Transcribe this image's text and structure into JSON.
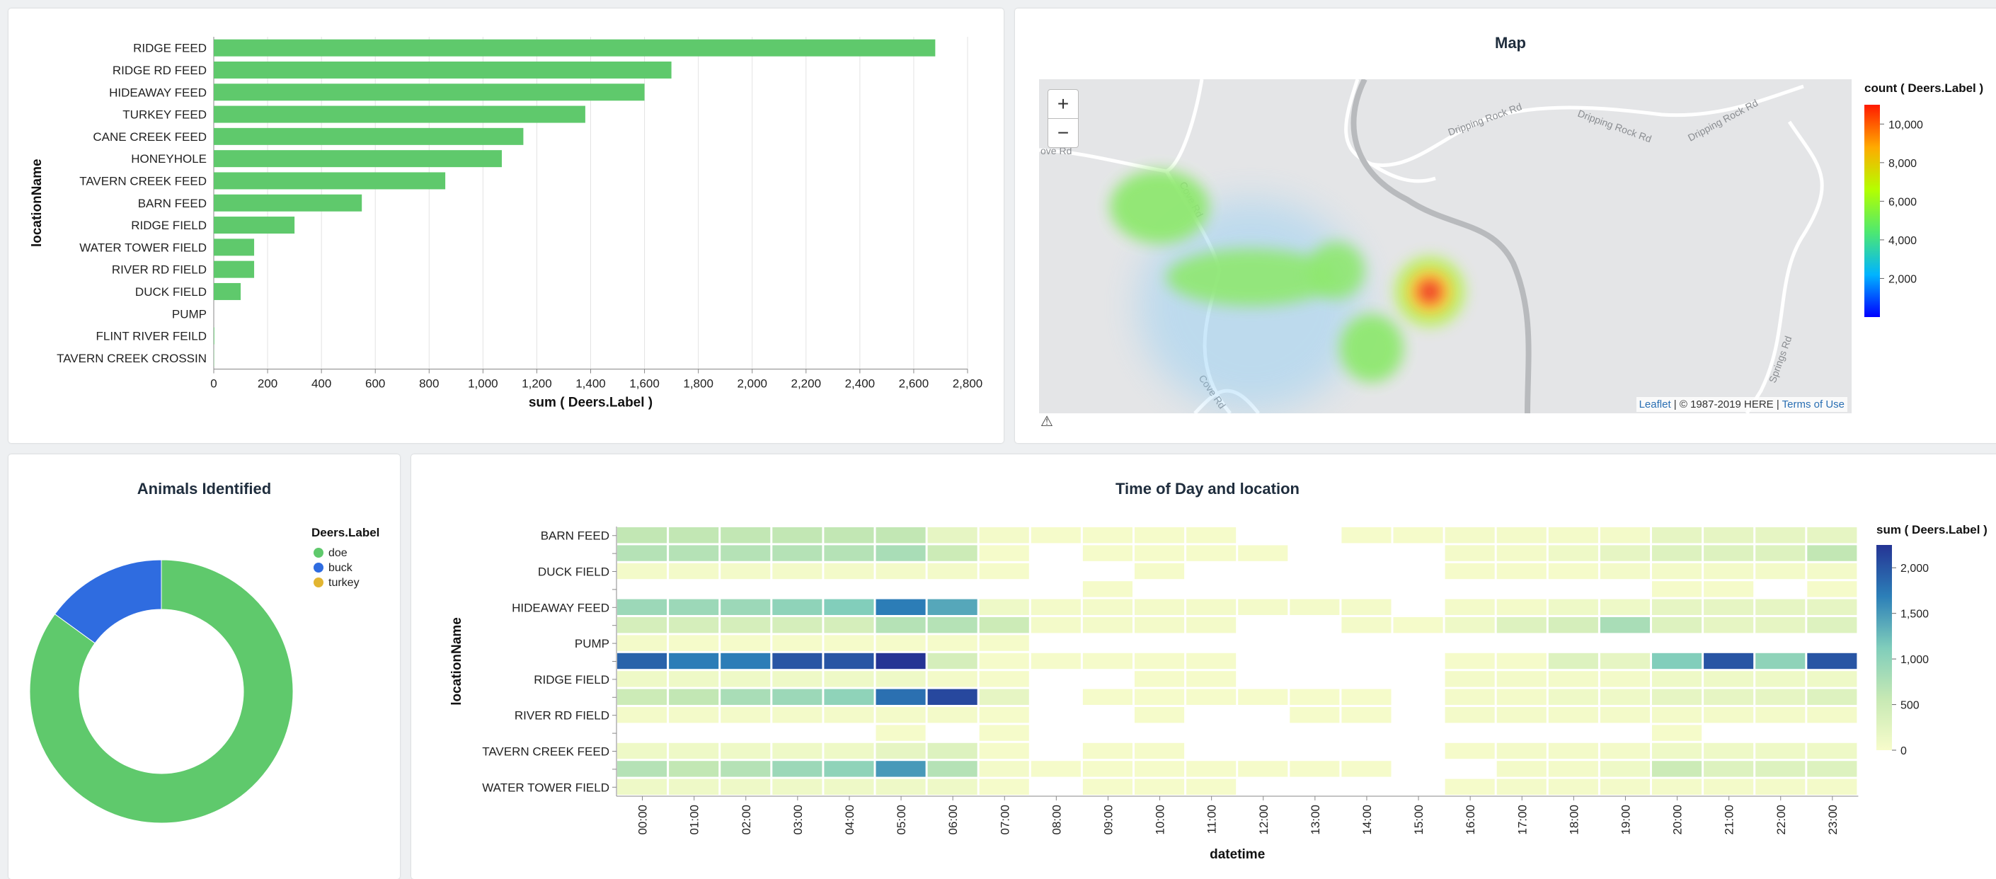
{
  "bar_panel": {},
  "map_panel": {
    "title": "Map",
    "zoom_in": "+",
    "zoom_out": "−",
    "attribution": {
      "leaflet": "Leaflet",
      "sep1": " | © 1987-2019 HERE | ",
      "terms": "Terms of Use"
    },
    "warning_icon": "warning-triangle-icon",
    "roads": [
      "ove Rd",
      "Cove Rd",
      "Cove Rd",
      "Dripping Rock Rd",
      "Dripping Rock Rd",
      "Dripping Rock Rd",
      "Springs Rd"
    ],
    "legend": {
      "title": "count ( Deers.Label )",
      "ticks": [
        "10,000",
        "8,000",
        "6,000",
        "4,000",
        "2,000"
      ],
      "max": 11000
    }
  },
  "donut_panel": {
    "title": "Animals Identified"
  },
  "heat_panel": {
    "title": "Time of Day and location"
  },
  "colors": {
    "bar": "#5fc96c",
    "doe": "#5fc96c",
    "buck": "#2f6ce0",
    "turkey": "#e2b531"
  },
  "chart_data": [
    {
      "type": "bar",
      "orientation": "horizontal",
      "categories": [
        "RIDGE FEED",
        "RIDGE RD FEED",
        "HIDEAWAY FEED",
        "TURKEY FEED",
        "CANE CREEK FEED",
        "HONEYHOLE",
        "TAVERN CREEK FEED",
        "BARN FEED",
        "RIDGE FIELD",
        "WATER TOWER FIELD",
        "RIVER RD FIELD",
        "DUCK FIELD",
        "PUMP",
        "FLINT RIVER FEILD",
        "TAVERN CREEK CROSSIN"
      ],
      "values": [
        2680,
        1700,
        1600,
        1380,
        1150,
        1070,
        860,
        550,
        300,
        150,
        150,
        100,
        0,
        2,
        1
      ],
      "xlabel": "sum ( Deers.Label )",
      "ylabel": "locationName",
      "xlim": [
        0,
        2800
      ],
      "xticks": [
        "0",
        "200",
        "400",
        "600",
        "800",
        "1,000",
        "1,200",
        "1,400",
        "1,600",
        "1,800",
        "2,000",
        "2,200",
        "2,400",
        "2,600",
        "2,800"
      ],
      "grid": true
    },
    {
      "type": "pie",
      "donut": true,
      "title": "Animals Identified",
      "legend_title": "Deers.Label",
      "legend_position": "top-right",
      "labels": [
        "doe",
        "buck",
        "turkey"
      ],
      "values": [
        85,
        15,
        0
      ]
    },
    {
      "type": "heatmap",
      "title": "Time of Day and location",
      "xlabel": "datetime",
      "ylabel": "locationName",
      "x": [
        "00:00",
        "01:00",
        "02:00",
        "03:00",
        "04:00",
        "05:00",
        "06:00",
        "07:00",
        "08:00",
        "09:00",
        "10:00",
        "11:00",
        "12:00",
        "13:00",
        "14:00",
        "15:00",
        "16:00",
        "17:00",
        "18:00",
        "19:00",
        "20:00",
        "21:00",
        "22:00",
        "23:00"
      ],
      "rows": 15,
      "row_labels": [
        "BARN FEED",
        "",
        "DUCK FIELD",
        "",
        "HIDEAWAY FEED",
        "",
        "PUMP",
        "",
        "RIDGE FIELD",
        "",
        "RIVER RD FIELD",
        "",
        "TAVERN CREEK FEED",
        "",
        "WATER TOWER FIELD"
      ],
      "legend_title": "sum ( Deers.Label )",
      "legend_ticks": [
        "2,000",
        "1,500",
        "1,000",
        "500",
        "0"
      ],
      "value_range": [
        0,
        2250
      ],
      "values": [
        [
          600,
          600,
          600,
          600,
          600,
          600,
          200,
          50,
          20,
          20,
          20,
          20,
          null,
          null,
          20,
          20,
          50,
          50,
          50,
          50,
          200,
          200,
          200,
          200
        ],
        [
          700,
          700,
          700,
          700,
          700,
          800,
          500,
          20,
          null,
          20,
          20,
          20,
          20,
          null,
          null,
          null,
          50,
          50,
          100,
          200,
          300,
          300,
          300,
          600
        ],
        [
          50,
          50,
          50,
          50,
          50,
          50,
          50,
          20,
          null,
          null,
          20,
          null,
          null,
          null,
          null,
          null,
          20,
          20,
          20,
          50,
          50,
          50,
          50,
          50
        ],
        [
          null,
          null,
          null,
          null,
          null,
          null,
          null,
          null,
          null,
          20,
          null,
          null,
          null,
          null,
          null,
          null,
          null,
          null,
          null,
          null,
          20,
          20,
          null,
          20
        ],
        [
          900,
          900,
          900,
          1000,
          1100,
          1700,
          1400,
          100,
          50,
          50,
          50,
          50,
          50,
          50,
          50,
          null,
          50,
          50,
          100,
          100,
          200,
          200,
          200,
          200
        ],
        [
          400,
          400,
          400,
          400,
          400,
          700,
          700,
          500,
          50,
          50,
          50,
          50,
          null,
          null,
          50,
          20,
          100,
          300,
          400,
          800,
          300,
          200,
          200,
          300
        ],
        [
          50,
          20,
          20,
          20,
          20,
          20,
          20,
          20,
          null,
          null,
          null,
          null,
          null,
          null,
          null,
          null,
          null,
          null,
          null,
          null,
          null,
          null,
          null,
          null
        ],
        [
          1900,
          1700,
          1700,
          2000,
          2000,
          2250,
          400,
          20,
          20,
          20,
          20,
          20,
          null,
          null,
          null,
          null,
          20,
          20,
          300,
          200,
          1100,
          2000,
          1000,
          2000
        ],
        [
          100,
          100,
          100,
          100,
          100,
          100,
          50,
          20,
          null,
          null,
          20,
          20,
          null,
          null,
          null,
          null,
          50,
          50,
          50,
          50,
          100,
          100,
          100,
          100
        ],
        [
          500,
          600,
          800,
          900,
          1000,
          1800,
          2100,
          200,
          null,
          20,
          20,
          20,
          20,
          20,
          20,
          null,
          50,
          50,
          100,
          100,
          200,
          200,
          200,
          300
        ],
        [
          50,
          50,
          50,
          50,
          50,
          50,
          50,
          20,
          null,
          null,
          20,
          null,
          null,
          20,
          20,
          null,
          50,
          50,
          50,
          50,
          50,
          50,
          50,
          50
        ],
        [
          null,
          null,
          null,
          null,
          null,
          20,
          null,
          20,
          null,
          null,
          null,
          null,
          null,
          null,
          null,
          null,
          null,
          null,
          null,
          null,
          20,
          null,
          null,
          null
        ],
        [
          100,
          100,
          100,
          100,
          100,
          200,
          300,
          20,
          null,
          20,
          20,
          null,
          null,
          null,
          null,
          null,
          20,
          50,
          50,
          50,
          100,
          100,
          100,
          100
        ],
        [
          700,
          600,
          700,
          900,
          1000,
          1500,
          700,
          50,
          20,
          20,
          20,
          20,
          20,
          20,
          20,
          null,
          null,
          50,
          50,
          100,
          500,
          300,
          300,
          300
        ],
        [
          100,
          100,
          100,
          100,
          100,
          100,
          100,
          20,
          null,
          20,
          20,
          20,
          null,
          null,
          null,
          null,
          20,
          50,
          50,
          50,
          50,
          50,
          50,
          50
        ]
      ]
    }
  ]
}
